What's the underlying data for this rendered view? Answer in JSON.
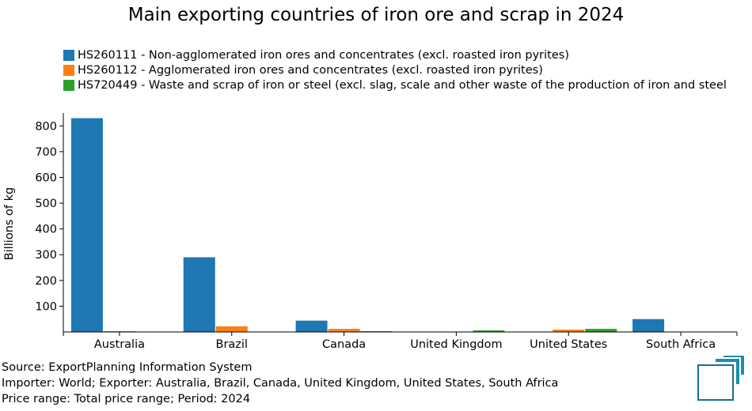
{
  "colors": {
    "series": [
      "#1f77b4",
      "#ff7f0e",
      "#2ca02c"
    ],
    "logo": "#1a8fa8"
  },
  "legend": [
    "HS260111 - Non-agglomerated iron ores and concentrates (excl. roasted iron pyrites)",
    "HS260112 - Agglomerated iron ores and concentrates (excl. roasted iron pyrites)",
    "HS720449 - Waste and scrap of iron or steel (excl. slag, scale and other waste of the production of iron and steel"
  ],
  "footer": {
    "source": "Source: ExportPlanning Information System",
    "filters": "Importer: World; Exporter: Australia, Brazil, Canada, United Kingdom, United States, South Africa",
    "period": "Price range: Total price range; Period: 2024"
  },
  "chart_data": {
    "type": "bar",
    "title": "Main exporting countries of iron ore and scrap in 2024",
    "xlabel": "",
    "ylabel": "Billions of kg",
    "categories": [
      "Australia",
      "Brazil",
      "Canada",
      "United Kingdom",
      "United States",
      "South Africa"
    ],
    "series": [
      {
        "name": "HS260111 - Non-agglomerated iron ores and concentrates (excl. roasted iron pyrites)",
        "values": [
          830,
          290,
          44,
          0,
          0,
          50
        ]
      },
      {
        "name": "HS260112 - Agglomerated iron ores and concentrates (excl. roasted iron pyrites)",
        "values": [
          3,
          22,
          12,
          0,
          9,
          0
        ]
      },
      {
        "name": "HS720449 - Waste and scrap of iron or steel (excl. slag, scale and other waste of the production of iron and steel",
        "values": [
          0,
          0,
          3,
          6,
          12,
          0
        ]
      }
    ],
    "ylim": [
      0,
      850
    ],
    "yticks": [
      100,
      200,
      300,
      400,
      500,
      600,
      700,
      800
    ],
    "grid": false,
    "legend_position": "top-left"
  }
}
